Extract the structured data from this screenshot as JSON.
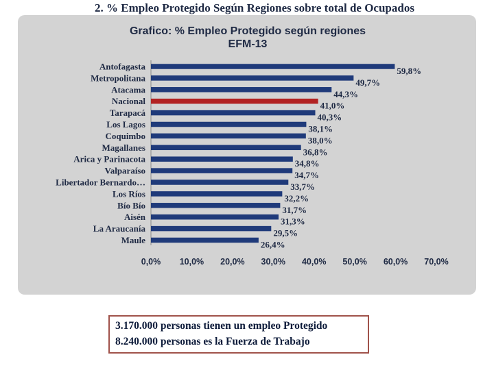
{
  "slide": {
    "title": "2. % Empleo Protegido Según Regiones sobre total de Ocupados"
  },
  "info_box": {
    "line1": "3.170.000 personas tienen un empleo Protegido",
    "line2": "8.240.000 personas es la Fuerza de Trabajo"
  },
  "colors": {
    "bar": "#1f3a7a",
    "highlight": "#b22222",
    "panel": "#d3d3d3",
    "text": "#1f2a44"
  },
  "chart_data": {
    "type": "bar",
    "orientation": "horizontal",
    "title": "Grafico: % Empleo Protegido según regiones",
    "subtitle": "EFM-13",
    "categories": [
      "Antofagasta",
      "Metropolitana",
      "Atacama",
      "Nacional",
      "Tarapacá",
      "Los Lagos",
      "Coquimbo",
      "Magallanes",
      "Arica y Parinacota",
      "Valparaíso",
      "Libertador Bernardo…",
      "Los Ríos",
      "Bío Bío",
      "Aisén",
      "La Araucanía",
      "Maule"
    ],
    "values": [
      59.8,
      49.7,
      44.3,
      41.0,
      40.3,
      38.1,
      38.0,
      36.8,
      34.8,
      34.7,
      33.7,
      32.2,
      31.7,
      31.3,
      29.5,
      26.4
    ],
    "data_labels": [
      "59,8%",
      "49,7%",
      "44,3%",
      "41,0%",
      "40,3%",
      "38,1%",
      "38,0%",
      "36,8%",
      "34,8%",
      "34,7%",
      "33,7%",
      "32,2%",
      "31,7%",
      "31,3%",
      "29,5%",
      "26,4%"
    ],
    "highlight_category": "Nacional",
    "xlim": [
      0,
      70
    ],
    "x_ticks": [
      "0,0%",
      "10,0%",
      "20,0%",
      "30,0%",
      "40,0%",
      "50,0%",
      "60,0%",
      "70,0%"
    ],
    "grid": false,
    "legend": "none"
  }
}
